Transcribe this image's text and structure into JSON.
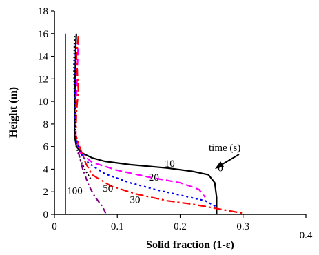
{
  "chart_data": {
    "type": "line",
    "xlabel": "Solid fraction (1-ε)",
    "ylabel": "Height (m)",
    "xlim": [
      0,
      0.4
    ],
    "ylim": [
      0,
      18
    ],
    "xticks": [
      0,
      0.1,
      0.2,
      0.3,
      0.4
    ],
    "xtick_labels": [
      "0",
      "0.1",
      "0.2",
      "0.3",
      "0.4"
    ],
    "yticks": [
      0,
      2,
      4,
      6,
      8,
      10,
      12,
      14,
      16,
      18
    ],
    "ytick_labels": [
      "0",
      "2",
      "4",
      "6",
      "8",
      "10",
      "12",
      "14",
      "16",
      "18"
    ],
    "grid": false,
    "legend": "none",
    "annotation_title": "time (s)",
    "series": [
      {
        "name": "0",
        "color": "#000000",
        "dash": "",
        "points": [
          [
            0.035,
            16
          ],
          [
            0.034,
            15
          ],
          [
            0.033,
            12
          ],
          [
            0.032,
            9
          ],
          [
            0.032,
            7
          ],
          [
            0.035,
            6
          ],
          [
            0.045,
            5.4
          ],
          [
            0.06,
            5
          ],
          [
            0.08,
            4.7
          ],
          [
            0.12,
            4.4
          ],
          [
            0.18,
            4.1
          ],
          [
            0.22,
            3.8
          ],
          [
            0.245,
            3.5
          ],
          [
            0.255,
            2.8
          ],
          [
            0.258,
            1.5
          ],
          [
            0.258,
            0
          ]
        ]
      },
      {
        "name": "10",
        "color": "#ff00ff",
        "dash": "10,5",
        "points": [
          [
            0.038,
            15.6
          ],
          [
            0.036,
            12
          ],
          [
            0.034,
            9
          ],
          [
            0.034,
            7
          ],
          [
            0.04,
            5.5
          ],
          [
            0.06,
            4.6
          ],
          [
            0.1,
            3.9
          ],
          [
            0.15,
            3.3
          ],
          [
            0.2,
            2.8
          ],
          [
            0.23,
            2.2
          ],
          [
            0.24,
            1.5
          ]
        ]
      },
      {
        "name": "20",
        "color": "#0000ff",
        "dash": "3,4",
        "points": [
          [
            0.034,
            15.5
          ],
          [
            0.033,
            12
          ],
          [
            0.033,
            9
          ],
          [
            0.034,
            7
          ],
          [
            0.04,
            5.5
          ],
          [
            0.055,
            4.5
          ],
          [
            0.08,
            3.6
          ],
          [
            0.12,
            2.8
          ],
          [
            0.16,
            2.2
          ],
          [
            0.2,
            1.7
          ],
          [
            0.24,
            1.2
          ],
          [
            0.26,
            0.6
          ]
        ]
      },
      {
        "name": "30",
        "color": "#ff0000",
        "dash": "12,4,3,4",
        "points": [
          [
            0.038,
            15.8
          ],
          [
            0.035,
            14
          ],
          [
            0.036,
            13
          ],
          [
            0.038,
            11
          ],
          [
            0.035,
            9
          ],
          [
            0.034,
            7
          ],
          [
            0.04,
            6
          ],
          [
            0.05,
            4.5
          ],
          [
            0.06,
            3.5
          ],
          [
            0.09,
            2.5
          ],
          [
            0.13,
            1.8
          ],
          [
            0.18,
            1.2
          ],
          [
            0.22,
            0.9
          ],
          [
            0.25,
            0.6
          ],
          [
            0.28,
            0.3
          ],
          [
            0.3,
            0.1
          ]
        ]
      },
      {
        "name": "50",
        "color": "#000000",
        "dash": "2,3",
        "points": [
          [
            0.032,
            15.8
          ],
          [
            0.031,
            13
          ],
          [
            0.032,
            10
          ],
          [
            0.033,
            8
          ],
          [
            0.035,
            6
          ],
          [
            0.04,
            5
          ],
          [
            0.048,
            4
          ],
          [
            0.058,
            3.1
          ]
        ]
      },
      {
        "name": "100",
        "color": "#800080",
        "dash": "8,4,2,4",
        "points": [
          [
            0.038,
            5.5
          ],
          [
            0.045,
            4
          ],
          [
            0.055,
            2.5
          ],
          [
            0.065,
            1.5
          ],
          [
            0.075,
            0.8
          ],
          [
            0.08,
            0.3
          ],
          [
            0.082,
            0
          ]
        ]
      },
      {
        "name": "",
        "color": "#ff0000",
        "dash": "",
        "points": [
          [
            0.018,
            16
          ],
          [
            0.018,
            0
          ]
        ]
      }
    ],
    "labels": [
      {
        "text": "0",
        "x": 0.26,
        "y": 3.8
      },
      {
        "text": "10",
        "x": 0.175,
        "y": 4.2
      },
      {
        "text": "20",
        "x": 0.15,
        "y": 3.0
      },
      {
        "text": "30",
        "x": 0.12,
        "y": 1.0
      },
      {
        "text": "50",
        "x": 0.077,
        "y": 2.0
      },
      {
        "text": "100",
        "x": 0.02,
        "y": 1.8
      }
    ]
  }
}
